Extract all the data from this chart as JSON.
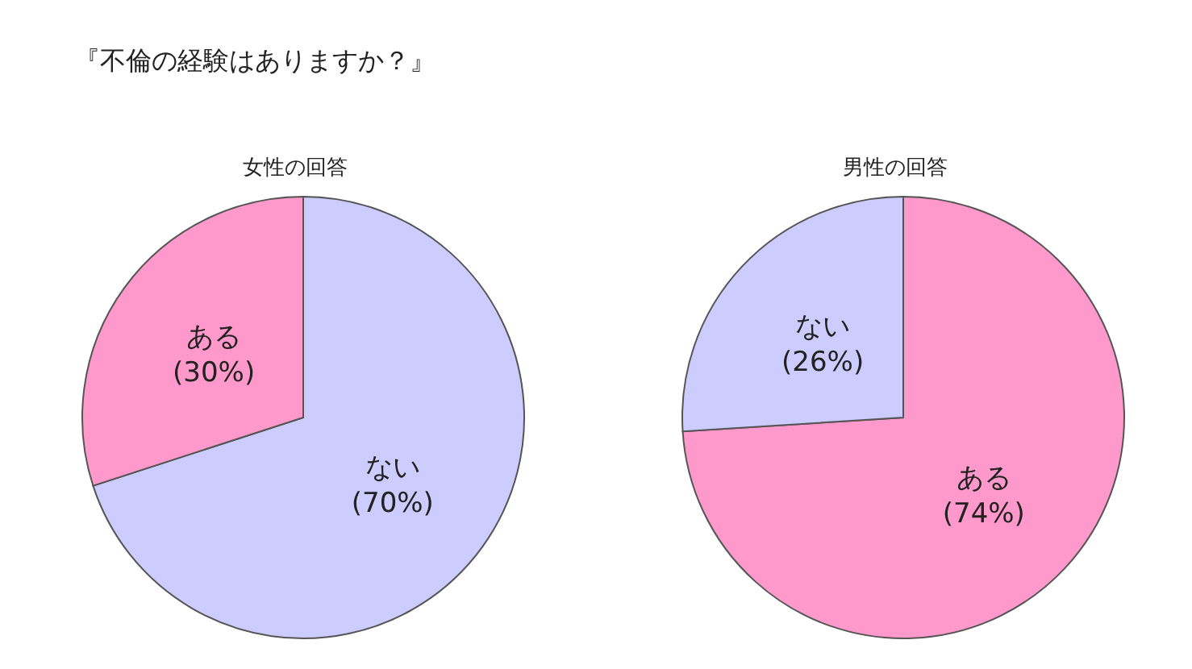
{
  "chart_data": [
    {
      "type": "pie",
      "title": "女性の回答",
      "annotations": [
        "『不倫の経験はありますか？』"
      ],
      "categories": [
        "ない",
        "ある"
      ],
      "values": [
        70,
        30
      ],
      "colors": [
        "#ccccff",
        "#ff99cc"
      ],
      "value_labels": [
        "(70%)",
        "(30%)"
      ]
    },
    {
      "type": "pie",
      "title": "男性の回答",
      "categories": [
        "ある",
        "ない"
      ],
      "values": [
        74,
        26
      ],
      "colors": [
        "#ff99cc",
        "#ccccff"
      ],
      "value_labels": [
        "(74%)",
        "(26%)"
      ]
    }
  ]
}
